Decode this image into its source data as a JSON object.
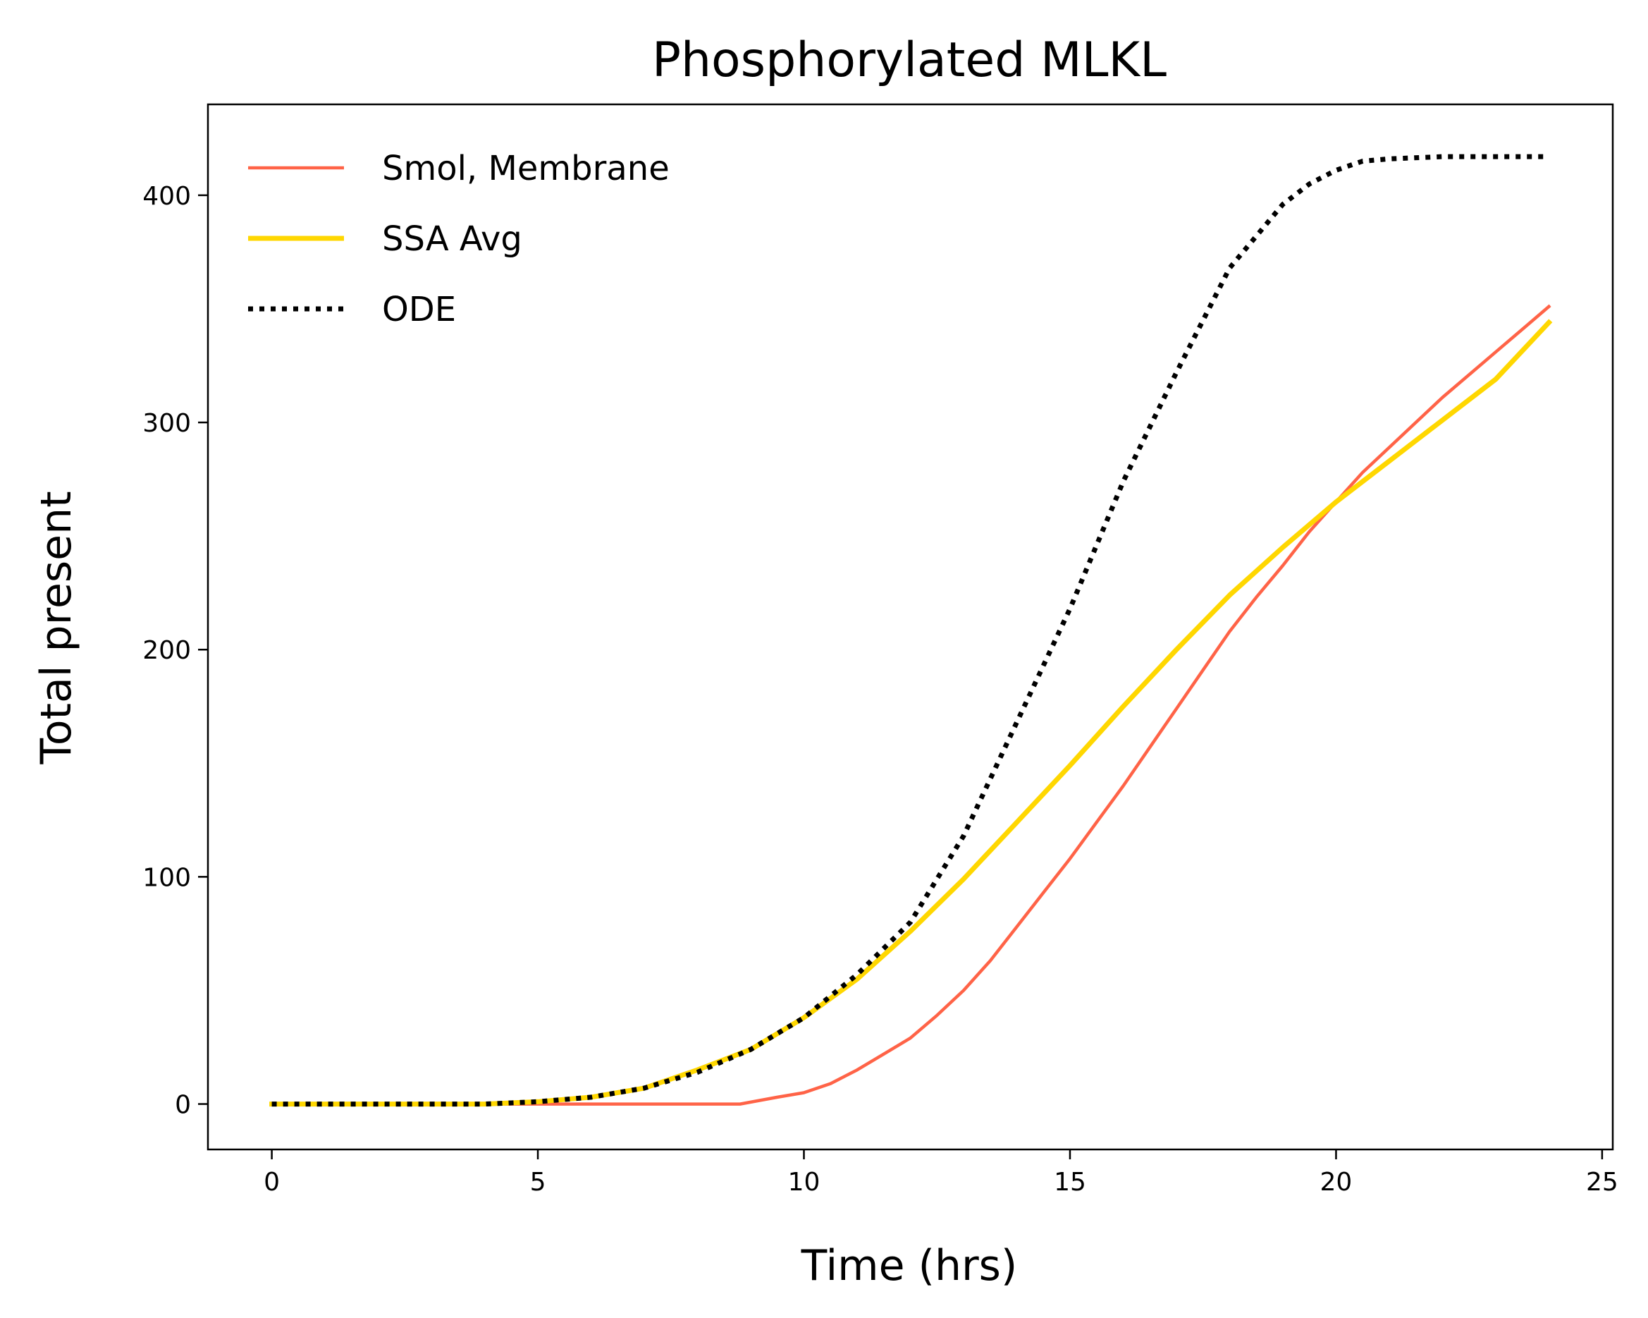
{
  "chart_data": {
    "type": "line",
    "title": "Phosphorylated MLKL",
    "xlabel": "Time (hrs)",
    "ylabel": "Total present",
    "xlim": [
      -1.2,
      25.2
    ],
    "ylim": [
      -20,
      440
    ],
    "xticks": [
      0,
      5,
      10,
      15,
      20,
      25
    ],
    "yticks": [
      0,
      100,
      200,
      300,
      400
    ],
    "grid": false,
    "legend_position": "top-left",
    "series": [
      {
        "name": "Smol, Membrane",
        "color": "#ff6347",
        "style": "solid",
        "x": [
          0,
          2,
          4,
          6,
          8,
          8.8,
          9.5,
          10,
          10.5,
          11,
          11.5,
          12,
          12.5,
          13,
          13.5,
          14,
          14.5,
          15,
          15.5,
          16,
          16.5,
          17,
          17.5,
          18,
          18.5,
          19,
          19.5,
          20,
          20.5,
          21,
          21.5,
          22,
          22.5,
          23,
          23.5,
          24
        ],
        "y": [
          0,
          0,
          0,
          0,
          0,
          0,
          3,
          5,
          9,
          15,
          22,
          29,
          39,
          50,
          63,
          78,
          93,
          108,
          124,
          140,
          157,
          174,
          191,
          208,
          223,
          237,
          252,
          265,
          278,
          289,
          300,
          311,
          321,
          331,
          341,
          351
        ]
      },
      {
        "name": "SSA Avg",
        "color": "#ffd700",
        "style": "solid",
        "x": [
          0,
          2,
          4,
          5,
          6,
          7,
          8,
          9,
          10,
          11,
          12,
          13,
          14,
          15,
          16,
          17,
          18,
          19,
          20,
          21,
          22,
          23,
          24
        ],
        "y": [
          0,
          0,
          0,
          1,
          3,
          7,
          15,
          24,
          38,
          55,
          76,
          99,
          124,
          149,
          175,
          200,
          224,
          245,
          265,
          283,
          301,
          319,
          344
        ]
      },
      {
        "name": "ODE",
        "color": "#000000",
        "style": "dotted",
        "x": [
          0,
          2,
          4,
          5,
          6,
          7,
          8,
          9,
          10,
          11,
          12,
          12.5,
          13,
          14,
          15,
          16,
          17,
          18,
          19,
          19.5,
          20,
          20.5,
          21,
          22,
          23,
          24
        ],
        "y": [
          0,
          0,
          0,
          1,
          3,
          7,
          14,
          24,
          38,
          57,
          80,
          99,
          118,
          168,
          218,
          274,
          322,
          368,
          396,
          405,
          411,
          415,
          416,
          417,
          417,
          417
        ]
      }
    ]
  }
}
